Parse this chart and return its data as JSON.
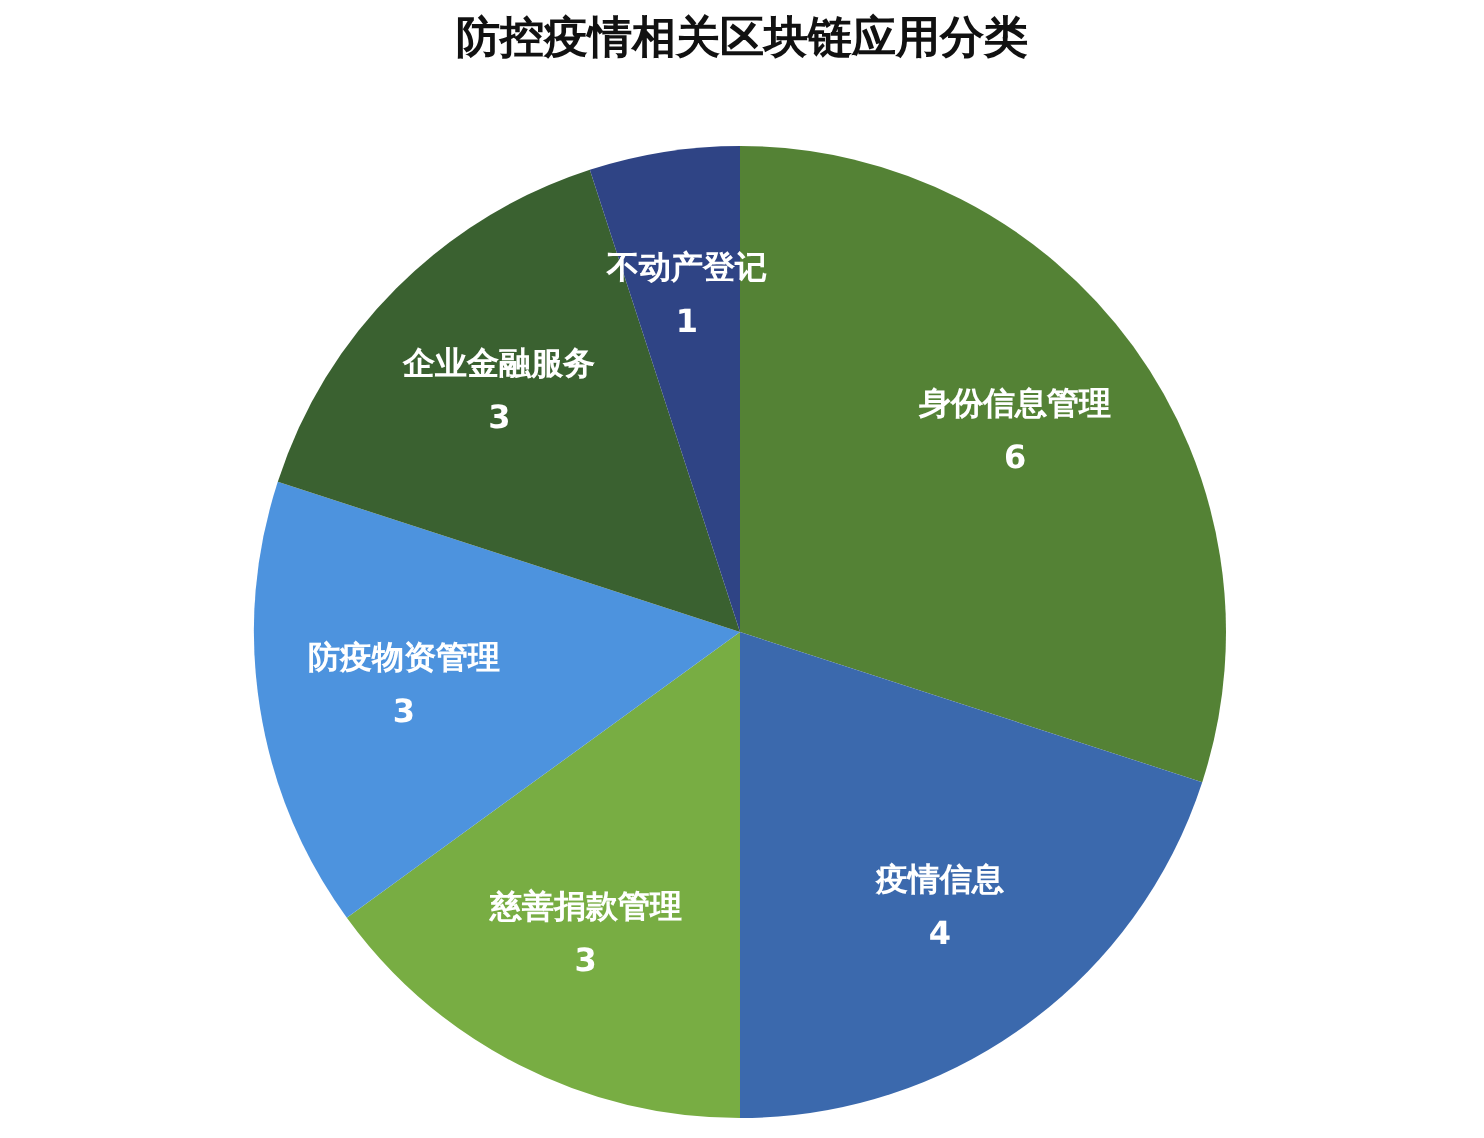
{
  "chart_data": {
    "type": "pie",
    "title": "防控疫情相关区块链应用分类",
    "categories": [
      "身份信息管理",
      "疫情信息",
      "慈善捐款管理",
      "防疫物资管理",
      "企业金融服务",
      "不动产登记"
    ],
    "values": [
      6,
      4,
      3,
      3,
      3,
      1
    ],
    "colors": [
      "#548235",
      "#3b69ad",
      "#78ad43",
      "#4d93de",
      "#3a6130",
      "#2f4485"
    ],
    "data_labels": true
  }
}
